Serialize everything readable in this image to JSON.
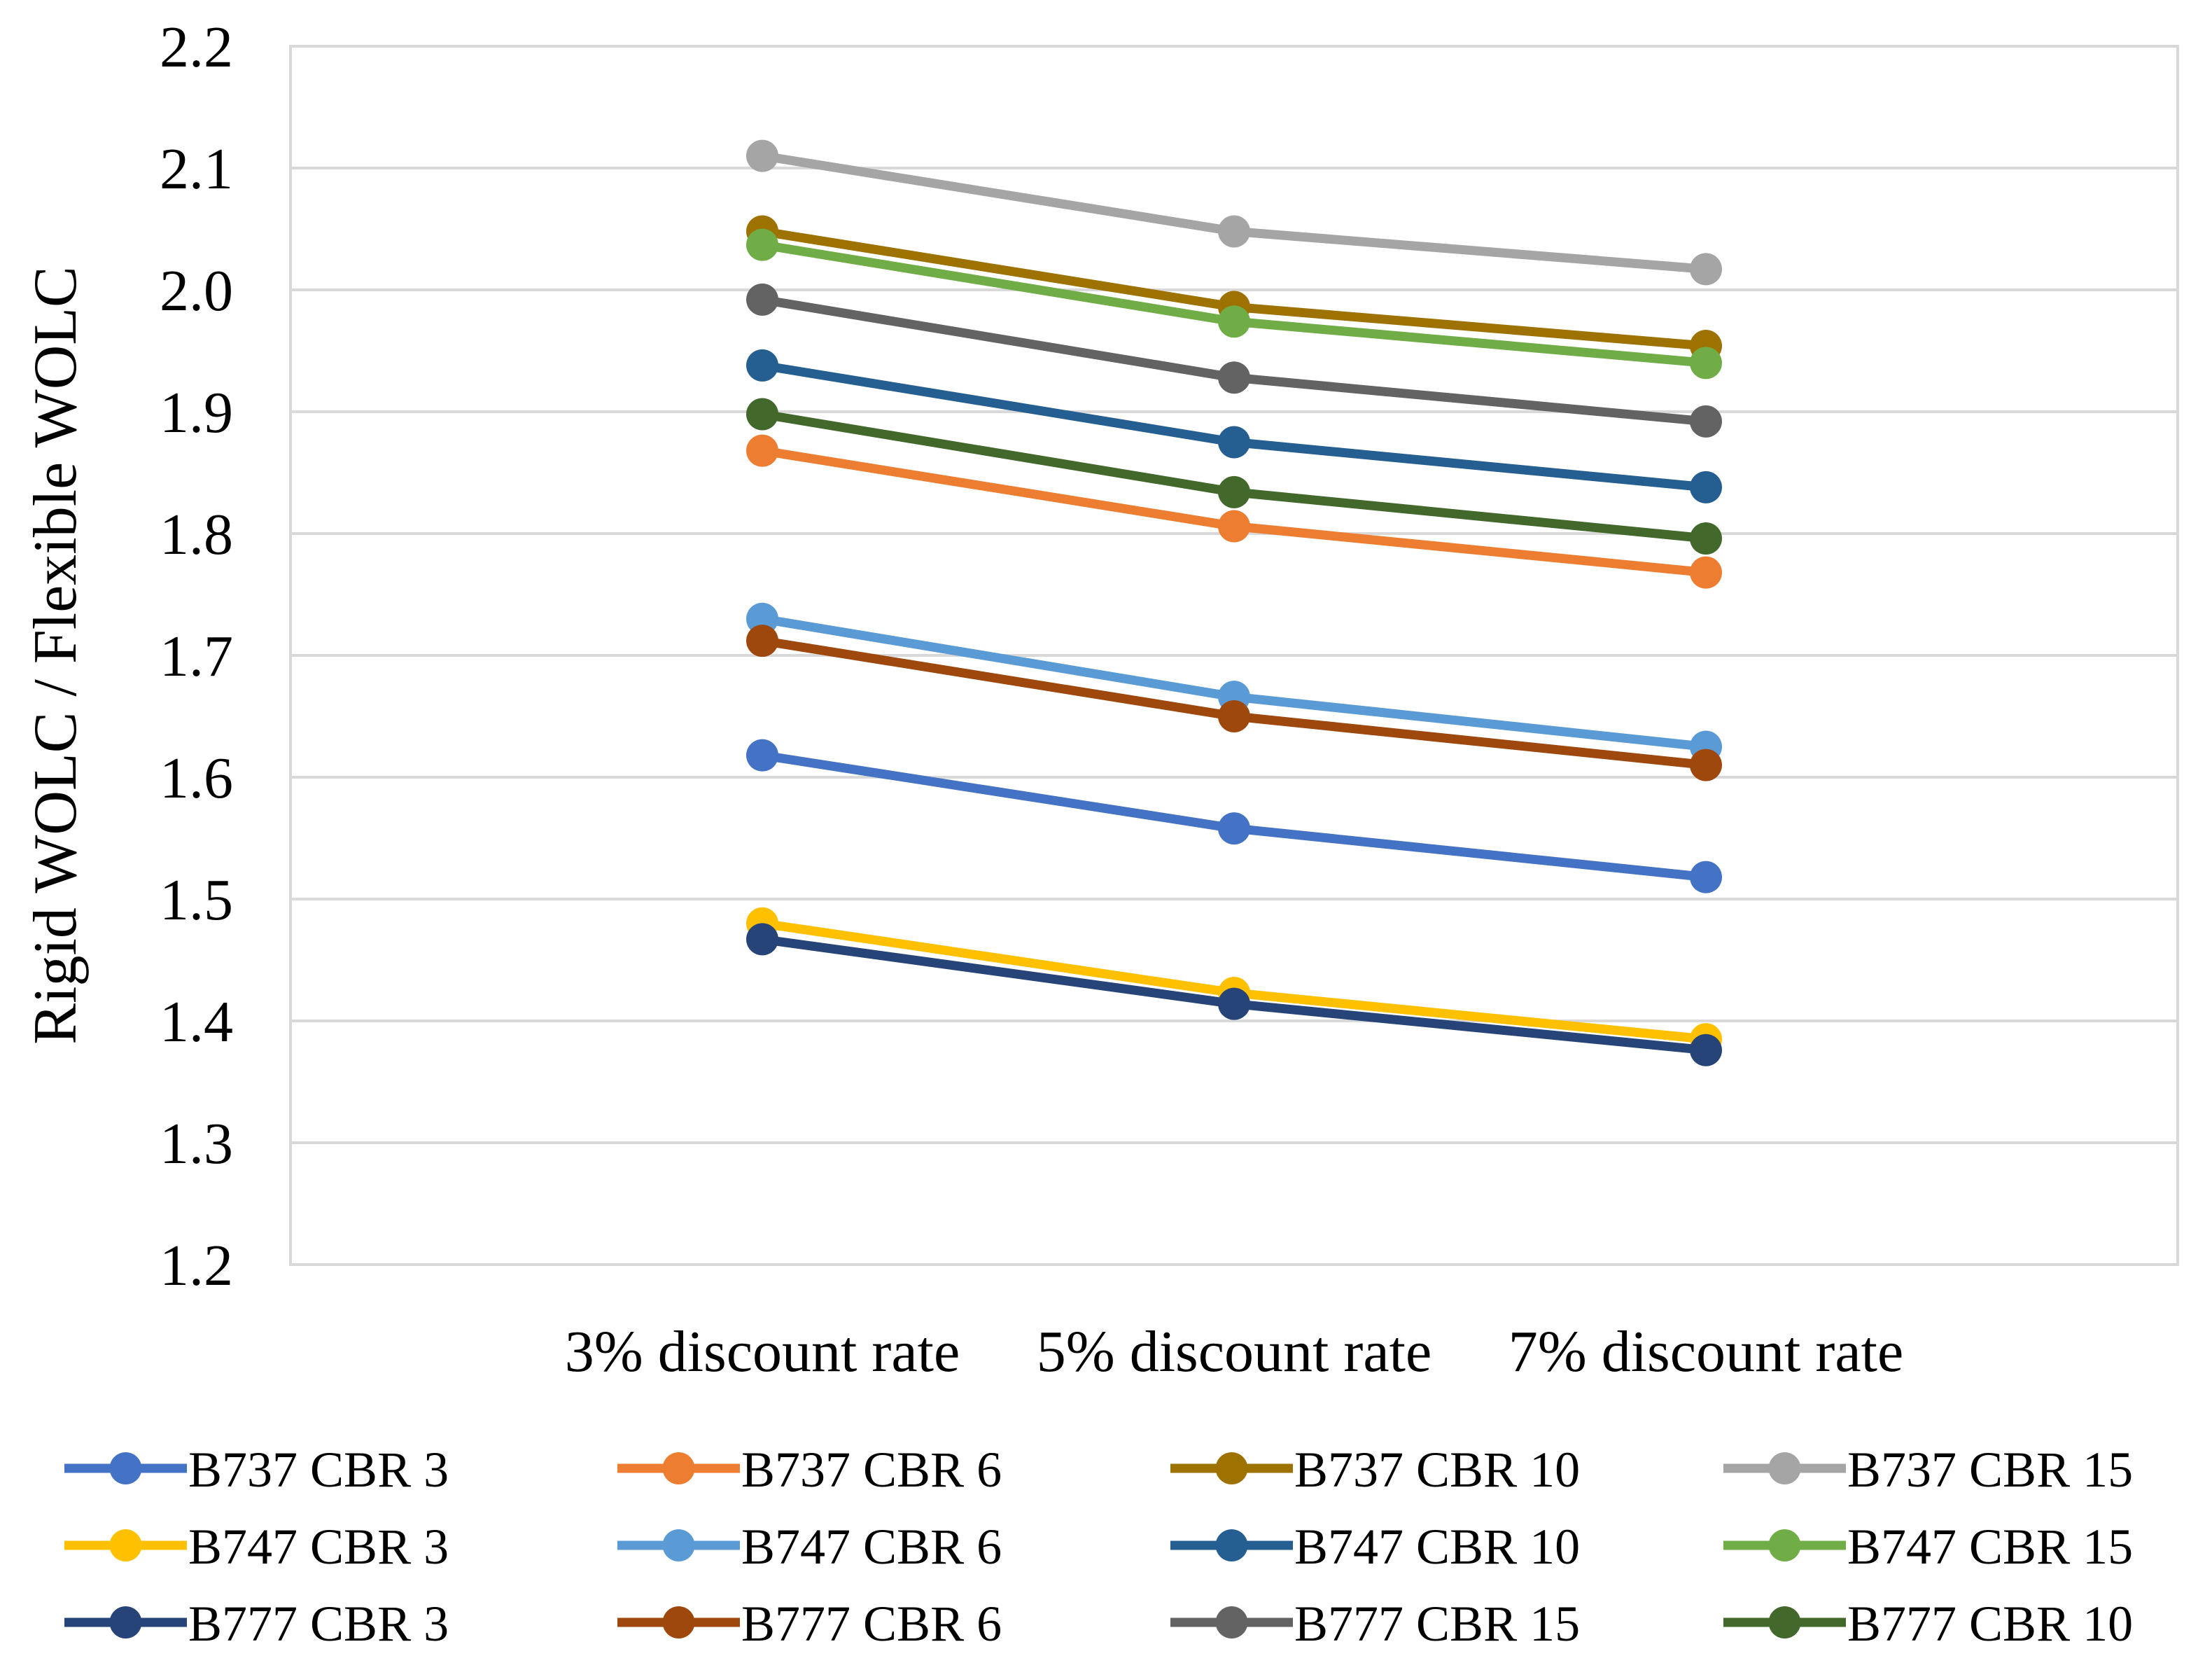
{
  "chart_data": {
    "type": "line",
    "title": "",
    "xlabel": "",
    "ylabel": "Rigid WOLC / Flexible WOLC",
    "ylim": [
      1.2,
      2.2
    ],
    "yticks": [
      1.2,
      1.3,
      1.4,
      1.5,
      1.6,
      1.7,
      1.8,
      1.9,
      2.0,
      2.1,
      2.2
    ],
    "ytick_labels": [
      "1.2",
      "1.3",
      "1.4",
      "1.5",
      "1.6",
      "1.7",
      "1.8",
      "1.9",
      "2.0",
      "2.1",
      "2.2"
    ],
    "grid": true,
    "legend_position": "bottom",
    "categories": [
      "3% discount rate",
      "5% discount rate",
      "7% discount rate"
    ],
    "series": [
      {
        "name": "B737 CBR 3",
        "color": "#4472C4",
        "values": [
          1.618,
          1.558,
          1.518
        ]
      },
      {
        "name": "B737 CBR 6",
        "color": "#ED7D31",
        "values": [
          1.868,
          1.806,
          1.768
        ]
      },
      {
        "name": "B737 CBR 10",
        "color": "#9E7200",
        "values": [
          2.048,
          1.986,
          1.954
        ]
      },
      {
        "name": "B737 CBR 15",
        "color": "#A5A5A5",
        "values": [
          2.11,
          2.048,
          2.017
        ]
      },
      {
        "name": "B747 CBR 3",
        "color": "#FFC000",
        "values": [
          1.48,
          1.423,
          1.385
        ]
      },
      {
        "name": "B747 CBR 6",
        "color": "#5B9BD5",
        "values": [
          1.73,
          1.666,
          1.625
        ]
      },
      {
        "name": "B747 CBR 10",
        "color": "#255E91",
        "values": [
          1.938,
          1.875,
          1.838
        ]
      },
      {
        "name": "B747 CBR 15",
        "color": "#70AD47",
        "values": [
          2.037,
          1.974,
          1.94
        ]
      },
      {
        "name": "B777 CBR 3",
        "color": "#264478",
        "values": [
          1.467,
          1.414,
          1.376
        ]
      },
      {
        "name": "B777 CBR 6",
        "color": "#9E480E",
        "values": [
          1.712,
          1.65,
          1.61
        ]
      },
      {
        "name": "B777 CBR 15",
        "color": "#636363",
        "values": [
          1.992,
          1.928,
          1.892
        ]
      },
      {
        "name": "B777 CBR 10",
        "color": "#43682B",
        "values": [
          1.898,
          1.834,
          1.796
        ]
      }
    ]
  }
}
